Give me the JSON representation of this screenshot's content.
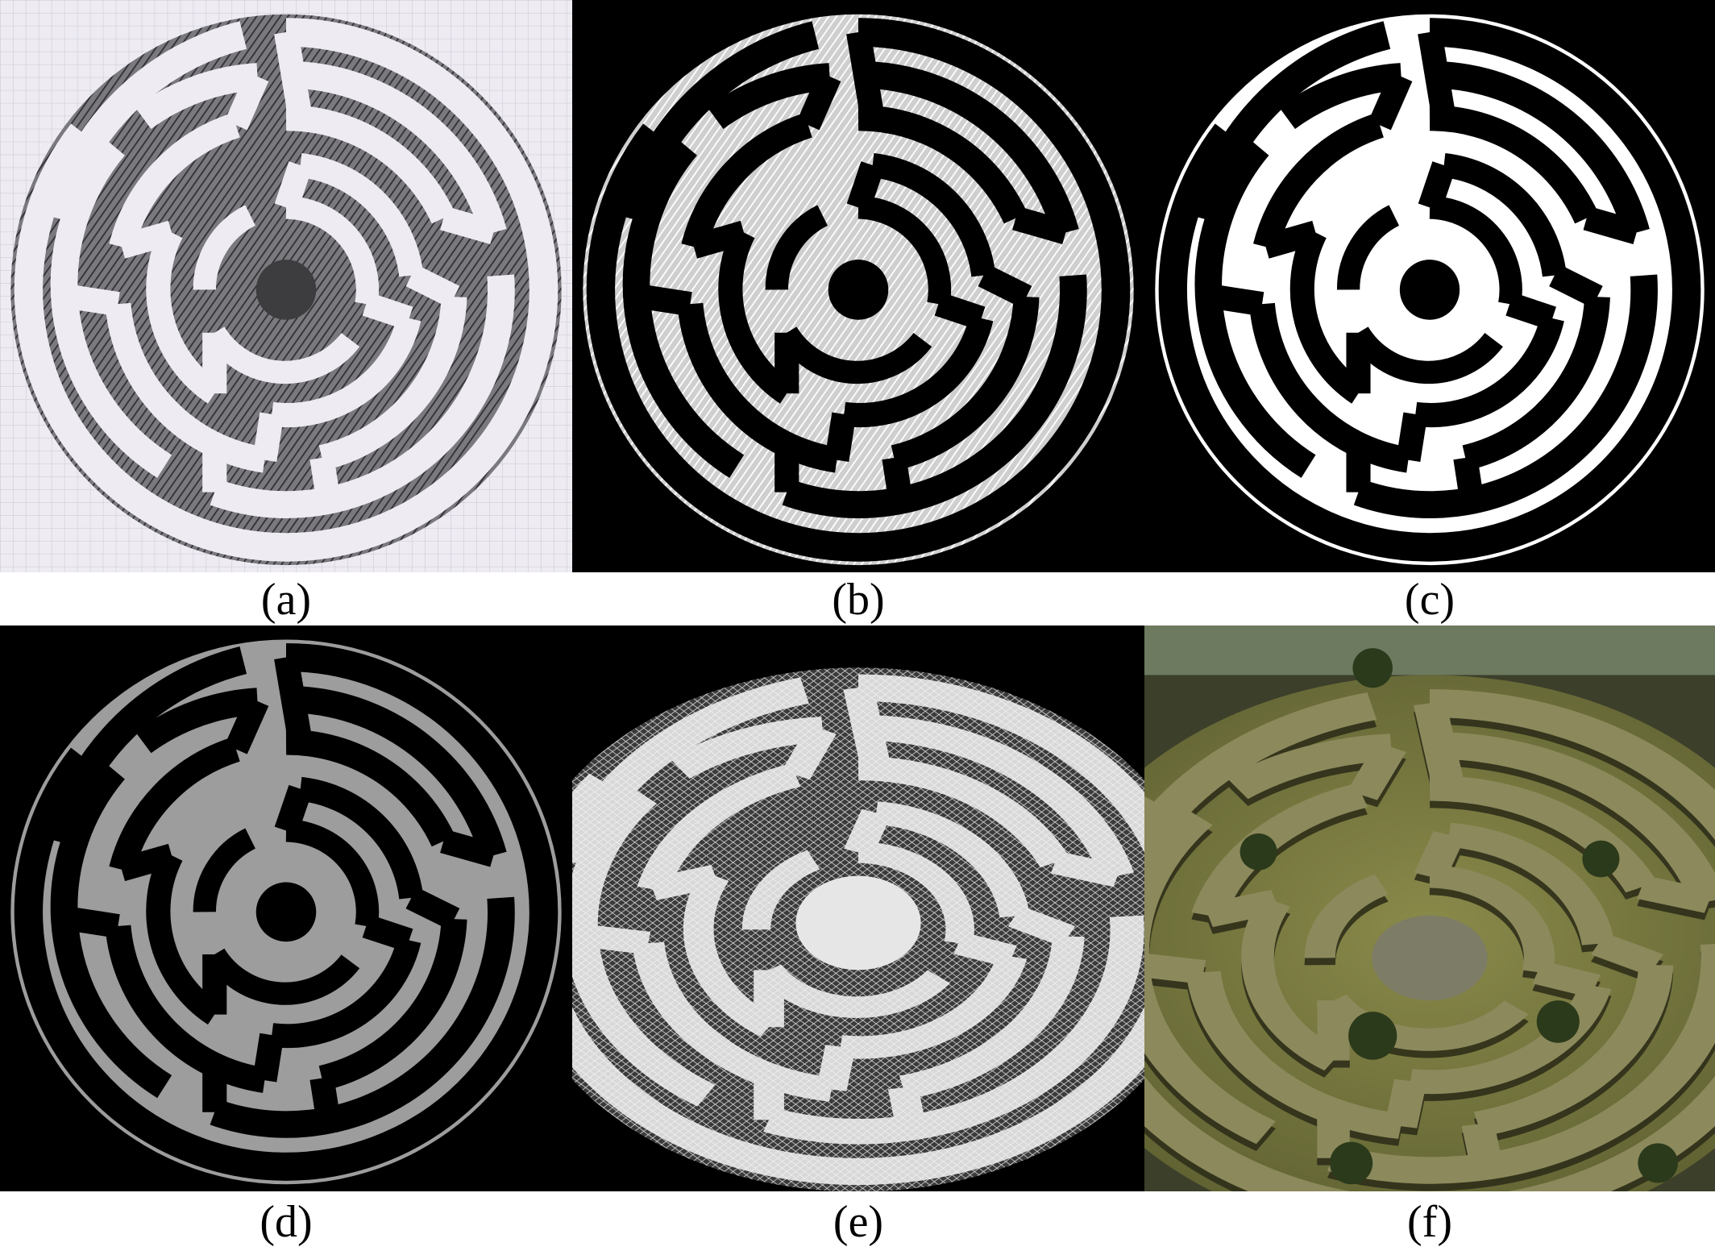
{
  "figure": {
    "panels": [
      {
        "id": "a",
        "caption": "(a)",
        "kind": "pencil-sketch-on-grid-paper"
      },
      {
        "id": "b",
        "caption": "(b)",
        "kind": "inverted-sketch"
      },
      {
        "id": "c",
        "caption": "(c)",
        "kind": "binary-mask"
      },
      {
        "id": "d",
        "caption": "(d)",
        "kind": "gray-height-map"
      },
      {
        "id": "e",
        "caption": "(e)",
        "kind": "wireframe-mesh"
      },
      {
        "id": "f",
        "caption": "(f)",
        "kind": "textured-3d-render"
      }
    ]
  },
  "colors": {
    "grid_paper": "#eeecf2",
    "grid_line": "#c9c6d6",
    "pencil": "#3d3d40",
    "background_black": "#000000",
    "mask_white": "#ffffff",
    "heightmap_gray": "#9d9d9d",
    "mesh_white": "#f4f4f4",
    "grass": "#6f7038",
    "hedge_shadow": "#2f2f1a"
  }
}
